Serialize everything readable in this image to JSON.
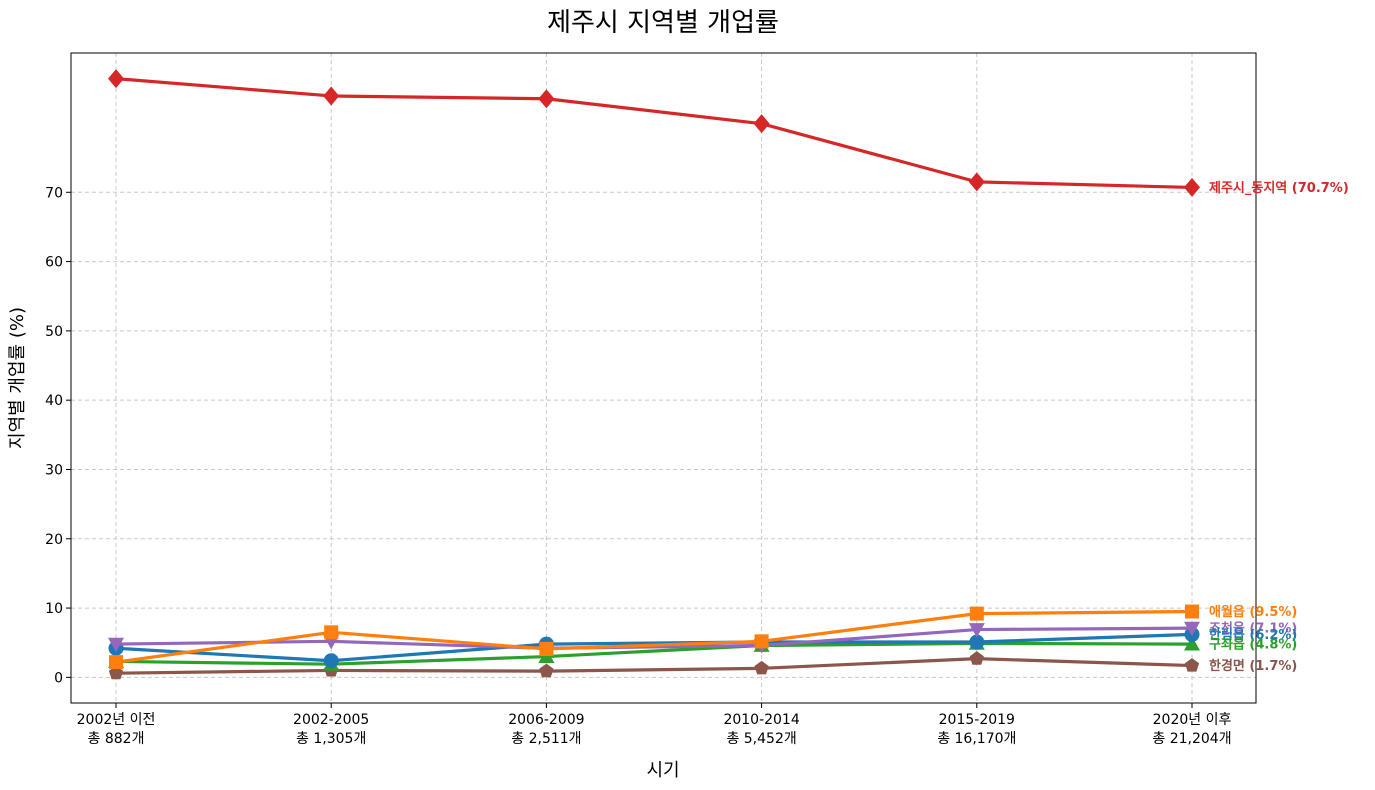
{
  "chart_data": {
    "type": "line",
    "title": "제주시 지역별 개업률",
    "xlabel": "시기",
    "ylabel": "지역별 개업률 (%)",
    "categories": [
      [
        "2002년 이전",
        "총 882개"
      ],
      [
        "2002-2005",
        "총 1,305개"
      ],
      [
        "2006-2009",
        "총 2,511개"
      ],
      [
        "2010-2014",
        "총 5,452개"
      ],
      [
        "2015-2019",
        "총 16,170개"
      ],
      [
        "2020년 이후",
        "총 21,204개"
      ]
    ],
    "yticks": [
      0,
      10,
      20,
      30,
      40,
      50,
      60,
      70
    ],
    "ylim": [
      -3.7,
      90.1
    ],
    "grid": true,
    "series": [
      {
        "name": "제주시_동지역",
        "end_label": "제주시_동지역 (70.7%)",
        "color": "#d62728",
        "marker": "diamond",
        "values": [
          86.4,
          83.9,
          83.5,
          79.9,
          71.5,
          70.7
        ]
      },
      {
        "name": "애월읍",
        "end_label": "애월읍 (9.5%)",
        "color": "#ff7f0e",
        "marker": "square",
        "values": [
          2.2,
          6.5,
          4.1,
          5.2,
          9.2,
          9.5
        ]
      },
      {
        "name": "조천읍",
        "end_label": "조천읍 (7.1%)",
        "color": "#9467bd",
        "marker": "triangle-down",
        "values": [
          4.8,
          5.2,
          4.2,
          4.6,
          6.9,
          7.1
        ]
      },
      {
        "name": "한림읍",
        "end_label": "한림읍 (6.2%)",
        "color": "#1f77b4",
        "marker": "circle",
        "values": [
          4.2,
          2.4,
          4.8,
          5.1,
          5.1,
          6.2
        ]
      },
      {
        "name": "구좌읍",
        "end_label": "구좌읍 (4.8%)",
        "color": "#2ca02c",
        "marker": "triangle-up",
        "values": [
          2.3,
          1.9,
          3.0,
          4.6,
          4.9,
          4.8
        ]
      },
      {
        "name": "한경면",
        "end_label": "한경면 (1.7%)",
        "color": "#8c564b",
        "marker": "pentagon",
        "values": [
          0.6,
          1.0,
          0.9,
          1.3,
          2.7,
          1.7
        ]
      }
    ]
  }
}
